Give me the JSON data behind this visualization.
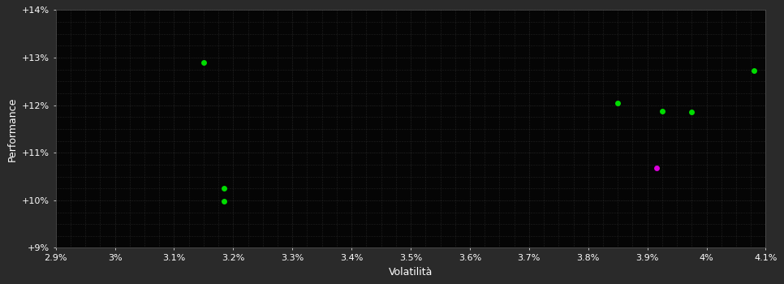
{
  "background_color": "#2a2a2a",
  "plot_bg_color": "#050505",
  "grid_color": "#3a3a3a",
  "xlabel": "Volatilità",
  "ylabel": "Performance",
  "xlim": [
    0.029,
    0.041
  ],
  "ylim": [
    0.09,
    0.14
  ],
  "xticks": [
    0.029,
    0.03,
    0.031,
    0.032,
    0.033,
    0.034,
    0.035,
    0.036,
    0.037,
    0.038,
    0.039,
    0.04,
    0.041
  ],
  "yticks": [
    0.09,
    0.1,
    0.11,
    0.12,
    0.13,
    0.14
  ],
  "xtick_labels": [
    "2.9%",
    "3%",
    "3.1%",
    "3.2%",
    "3.3%",
    "3.4%",
    "3.5%",
    "3.6%",
    "3.7%",
    "3.8%",
    "3.9%",
    "4%",
    "4.1%"
  ],
  "ytick_labels": [
    "+9%",
    "+10%",
    "+11%",
    "+12%",
    "+13%",
    "+14%"
  ],
  "green_points": [
    [
      0.0315,
      0.129
    ],
    [
      0.03185,
      0.1025
    ],
    [
      0.03185,
      0.0998
    ],
    [
      0.0385,
      0.1205
    ],
    [
      0.03925,
      0.1188
    ],
    [
      0.03975,
      0.1185
    ],
    [
      0.0408,
      0.1272
    ]
  ],
  "magenta_points": [
    [
      0.03915,
      0.1068
    ]
  ],
  "green_color": "#00dd00",
  "magenta_color": "#dd00dd",
  "marker_size": 5,
  "font_size_ticks": 8,
  "font_size_labels": 9
}
